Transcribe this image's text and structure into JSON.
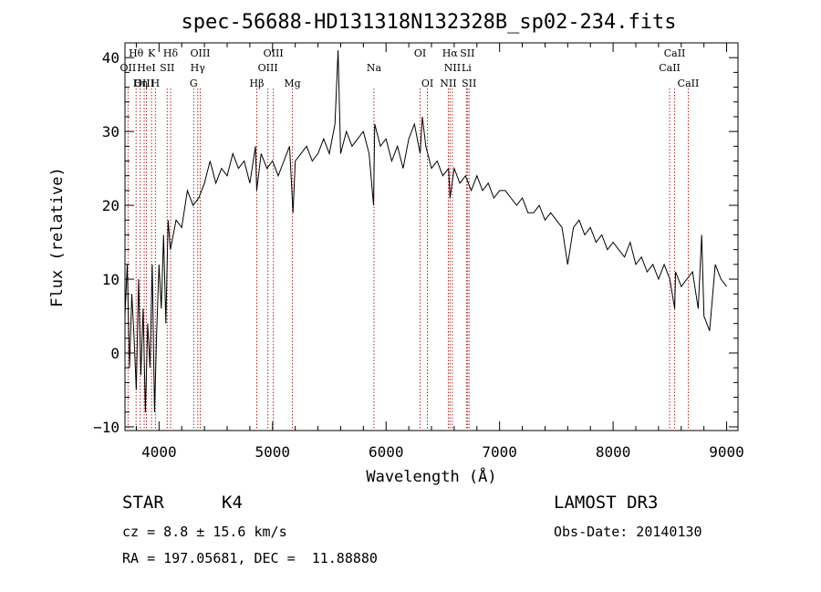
{
  "chart_data": {
    "type": "line",
    "title": "spec-56688-HD131318N132328B_sp02-234.fits",
    "xlabel": "Wavelength (Å)",
    "ylabel": "Flux (relative)",
    "xlim": [
      3700,
      9100
    ],
    "ylim": [
      -10.5,
      42
    ],
    "xticks": [
      4000,
      5000,
      6000,
      7000,
      8000,
      9000
    ],
    "xtick_labels": [
      "4000",
      "5000",
      "6000",
      "7000",
      "8000",
      "9000"
    ],
    "yticks": [
      -10,
      0,
      10,
      20,
      30,
      40
    ],
    "ytick_labels": [
      "−10",
      "0",
      "10",
      "20",
      "30",
      "40"
    ],
    "grid": false,
    "series": [
      {
        "name": "flux",
        "x": [
          3700,
          3720,
          3740,
          3760,
          3780,
          3800,
          3820,
          3840,
          3860,
          3880,
          3900,
          3920,
          3940,
          3960,
          3980,
          4000,
          4020,
          4040,
          4060,
          4080,
          4100,
          4150,
          4200,
          4250,
          4300,
          4350,
          4400,
          4450,
          4500,
          4550,
          4600,
          4650,
          4700,
          4750,
          4800,
          4850,
          4860,
          4900,
          4950,
          5000,
          5050,
          5100,
          5150,
          5180,
          5200,
          5250,
          5300,
          5350,
          5400,
          5450,
          5500,
          5550,
          5577,
          5600,
          5650,
          5700,
          5750,
          5800,
          5850,
          5890,
          5900,
          5950,
          6000,
          6050,
          6100,
          6150,
          6200,
          6250,
          6300,
          6320,
          6350,
          6400,
          6450,
          6500,
          6550,
          6563,
          6600,
          6650,
          6700,
          6750,
          6800,
          6850,
          6900,
          6950,
          7000,
          7050,
          7100,
          7150,
          7200,
          7250,
          7300,
          7350,
          7400,
          7450,
          7500,
          7550,
          7600,
          7650,
          7700,
          7750,
          7800,
          7850,
          7900,
          7950,
          8000,
          8050,
          8100,
          8150,
          8200,
          8250,
          8300,
          8350,
          8400,
          8450,
          8500,
          8542,
          8550,
          8600,
          8650,
          8700,
          8750,
          8780,
          8800,
          8850,
          8900,
          8950,
          9000
        ],
        "y": [
          5,
          12,
          -2,
          8,
          2,
          -5,
          10,
          -3,
          6,
          -8,
          4,
          -2,
          12,
          -8,
          3,
          12,
          6,
          16,
          4,
          18,
          14,
          18,
          17,
          22,
          20,
          21,
          23,
          26,
          23,
          25,
          24,
          27,
          25,
          26,
          23,
          28,
          22,
          27,
          25,
          26,
          24,
          26,
          28,
          19,
          26,
          27,
          28,
          26,
          27,
          29,
          27,
          31,
          41,
          27,
          30,
          28,
          29,
          30,
          27,
          20,
          31,
          28,
          29,
          26,
          28,
          25,
          29,
          31,
          27,
          32,
          28,
          25,
          26,
          24,
          25,
          21,
          25,
          23,
          24,
          22,
          24,
          22,
          23,
          21,
          22,
          22,
          21,
          20,
          21,
          19,
          19,
          20,
          18,
          19,
          18,
          17,
          12,
          17,
          18,
          16,
          17,
          15,
          16,
          14,
          15,
          14,
          13,
          15,
          12,
          13,
          11,
          12,
          10,
          12,
          10,
          6,
          11,
          9,
          10,
          11,
          6,
          16,
          5,
          3,
          12,
          10,
          9
        ]
      }
    ],
    "spectral_lines": [
      {
        "label": "Hθ",
        "wl": 3798,
        "row": 1
      },
      {
        "label": "OII",
        "wl": 3727,
        "row": 2
      },
      {
        "label": "OIII",
        "wl": 3869,
        "row": 3
      },
      {
        "label": "K",
        "wl": 3934,
        "row": 1
      },
      {
        "label": "HeI",
        "wl": 3889,
        "row": 2
      },
      {
        "label": "Hη",
        "wl": 3835,
        "row": 3
      },
      {
        "label": "H",
        "wl": 3968,
        "row": 3
      },
      {
        "label": "Hδ",
        "wl": 4102,
        "row": 1
      },
      {
        "label": "SII",
        "wl": 4072,
        "row": 2
      },
      {
        "label": "OIII",
        "wl": 4363,
        "row": 1
      },
      {
        "label": "Hγ",
        "wl": 4341,
        "row": 2
      },
      {
        "label": "G",
        "wl": 4305,
        "row": 3
      },
      {
        "label": "Hβ",
        "wl": 4861,
        "row": 3
      },
      {
        "label": "OIII",
        "wl": 5007,
        "row": 1
      },
      {
        "label": "OIII",
        "wl": 4959,
        "row": 2
      },
      {
        "label": "Mg",
        "wl": 5175,
        "row": 3
      },
      {
        "label": "Na",
        "wl": 5893,
        "row": 2
      },
      {
        "label": "OI",
        "wl": 6300,
        "row": 1
      },
      {
        "label": "OI",
        "wl": 6364,
        "row": 3
      },
      {
        "label": "Hα",
        "wl": 6563,
        "row": 1
      },
      {
        "label": "NII",
        "wl": 6584,
        "row": 2
      },
      {
        "label": "NII",
        "wl": 6548,
        "row": 3
      },
      {
        "label": "SII",
        "wl": 6716,
        "row": 1
      },
      {
        "label": "Li",
        "wl": 6708,
        "row": 2
      },
      {
        "label": "SII",
        "wl": 6731,
        "row": 3
      },
      {
        "label": "CaII",
        "wl": 8542,
        "row": 1
      },
      {
        "label": "CaII",
        "wl": 8498,
        "row": 2
      },
      {
        "label": "CaII",
        "wl": 8662,
        "row": 3
      }
    ],
    "colors": {
      "line": "#000000",
      "markers": "#b22222",
      "axes": "#000000"
    }
  },
  "info": {
    "class": "STAR",
    "subclass": "K4",
    "survey": "LAMOST DR3",
    "cz": "cz = 8.8 ± 15.6 km/s",
    "obs_date": "Obs-Date: 20140130",
    "coords": "RA = 197.05681, DEC =  11.88880"
  }
}
